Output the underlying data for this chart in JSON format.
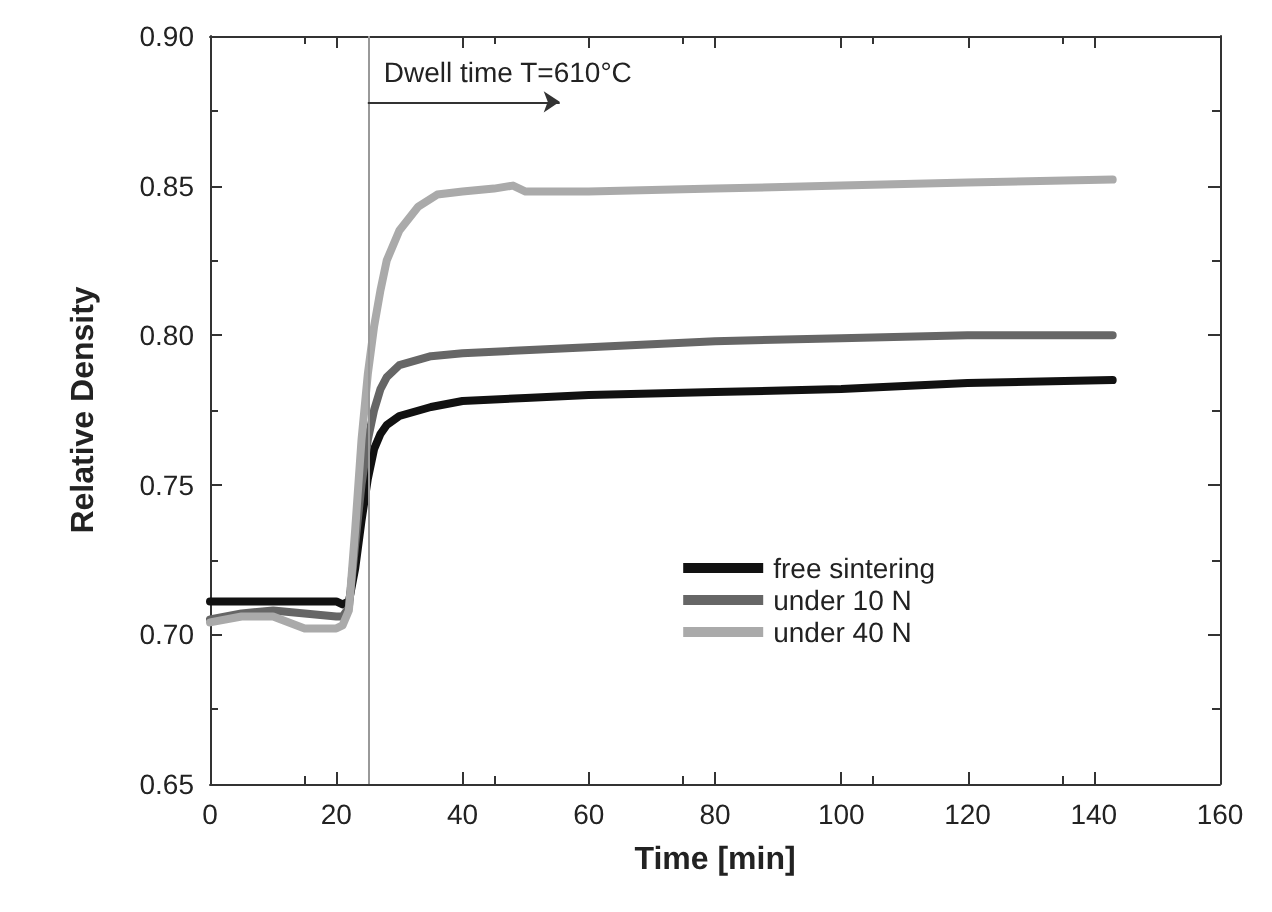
{
  "chart_data": {
    "type": "line",
    "xlabel": "Time [min]",
    "ylabel": "Relative Density",
    "xlim": [
      0,
      160
    ],
    "xticks": [
      0,
      20,
      40,
      60,
      80,
      100,
      120,
      140,
      160
    ],
    "ylim": [
      0.65,
      0.9
    ],
    "yticks": [
      0.65,
      {
        "value": 0.7,
        "label": "0.70"
      },
      0.75,
      {
        "value": 0.8,
        "label": "0.80"
      },
      0.85,
      {
        "value": 0.9,
        "label": "0.90"
      }
    ],
    "grid": false,
    "legend": "bottom right",
    "marker": "none",
    "line_style": "solid",
    "ref_lines": [
      {
        "axis": "x",
        "value": 25,
        "color": "#999999"
      }
    ],
    "annotations": [
      {
        "text": "Dwell time T=610°C",
        "x": 25,
        "y": 0.878
      }
    ],
    "series": [
      {
        "name": "free sintering",
        "color": "#111111",
        "x": [
          0,
          10,
          20,
          21,
          22,
          23,
          24,
          25,
          26,
          27,
          28,
          30,
          35,
          40,
          50,
          60,
          80,
          100,
          120,
          143
        ],
        "values": [
          0.711,
          0.711,
          0.711,
          0.71,
          0.711,
          0.722,
          0.738,
          0.752,
          0.762,
          0.767,
          0.77,
          0.773,
          0.776,
          0.778,
          0.779,
          0.78,
          0.781,
          0.782,
          0.784,
          0.785
        ]
      },
      {
        "name": "under 10 N",
        "color": "#666666",
        "x": [
          0,
          5,
          10,
          15,
          20,
          21,
          22,
          23,
          24,
          25,
          26,
          27,
          28,
          30,
          35,
          40,
          60,
          80,
          100,
          120,
          143
        ],
        "values": [
          0.705,
          0.707,
          0.708,
          0.707,
          0.706,
          0.706,
          0.709,
          0.73,
          0.75,
          0.765,
          0.775,
          0.782,
          0.786,
          0.79,
          0.793,
          0.794,
          0.796,
          0.798,
          0.799,
          0.8,
          0.8
        ]
      },
      {
        "name": "under 40 N",
        "color": "#aaaaaa",
        "x": [
          0,
          5,
          10,
          15,
          20,
          21,
          22,
          23,
          24,
          25,
          26,
          27,
          28,
          30,
          33,
          36,
          40,
          45,
          48,
          50,
          52,
          60,
          80,
          100,
          120,
          143
        ],
        "values": [
          0.704,
          0.706,
          0.706,
          0.702,
          0.702,
          0.703,
          0.708,
          0.735,
          0.765,
          0.787,
          0.803,
          0.815,
          0.825,
          0.835,
          0.843,
          0.847,
          0.848,
          0.849,
          0.85,
          0.848,
          0.848,
          0.848,
          0.849,
          0.85,
          0.851,
          0.852
        ]
      }
    ]
  }
}
